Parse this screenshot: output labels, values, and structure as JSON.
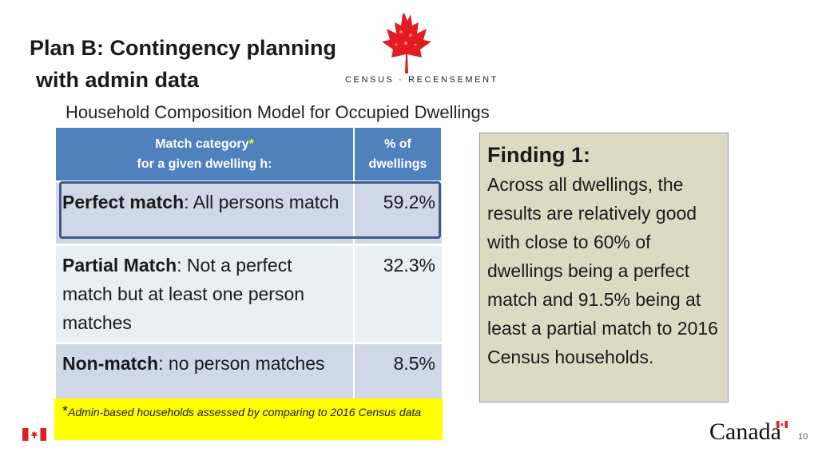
{
  "title": {
    "line1": "Plan B: Contingency planning",
    "line2": "with admin data"
  },
  "logo": {
    "text": "CENSUS · RECENSEMENT"
  },
  "subtitle": "Household Composition Model for Occupied Dwellings",
  "table": {
    "header": {
      "category_line1": "Match category",
      "star": "*",
      "category_line2": "for a given dwelling h:",
      "pct_line1": "% of",
      "pct_line2": "dwellings"
    },
    "rows": [
      {
        "bold": "Perfect match",
        "rest": ": All persons match",
        "pct": "59.2%"
      },
      {
        "bold": "Partial Match",
        "rest": ": Not a perfect match but at least one person matches",
        "pct": "32.3%"
      },
      {
        "bold": "Non-match",
        "rest": ": no person matches",
        "pct": "8.5%"
      }
    ]
  },
  "footnote": {
    "asterisk": "*",
    "text": "Admin-based households assessed by comparing to 2016 Census data"
  },
  "finding": {
    "heading": "Finding 1:",
    "body": "Across all dwellings, the results are relatively good with close to 60% of dwellings being a perfect match  and 91.5% being at least a partial match to 2016 Census households."
  },
  "footer": {
    "canada": "Canada",
    "page_number": "10"
  },
  "colors": {
    "header_blue": "#4f81bd",
    "row_dark": "#d0d8e8",
    "row_light": "#e9edf4",
    "footnote_yellow": "#ffff00",
    "finding_bg": "#ddd9c3",
    "flag_red": "#e31b23"
  }
}
